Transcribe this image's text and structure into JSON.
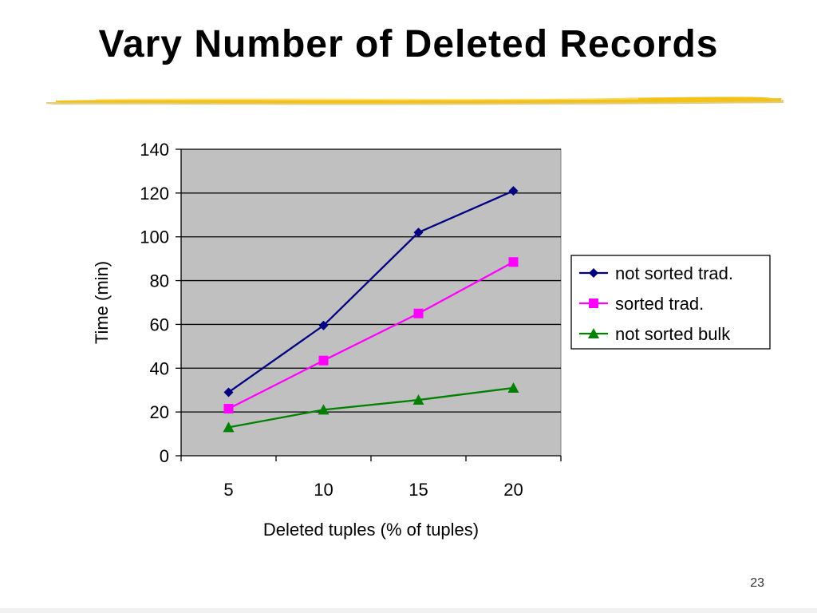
{
  "slide": {
    "title": "Vary Number of Deleted Records",
    "page_number": "23"
  },
  "colors": {
    "plot_background": "#c0c0c0",
    "gridline": "#000000",
    "underline_gold": "#f2c21b",
    "underline_shadow": "#c9a21a"
  },
  "chart_data": {
    "type": "line",
    "title": "",
    "xlabel": "Deleted tuples (% of tuples)",
    "ylabel": "Time (min)",
    "categories": [
      "5",
      "10",
      "15",
      "20"
    ],
    "ylim": [
      0,
      140
    ],
    "yticks": [
      0,
      20,
      40,
      60,
      80,
      100,
      120,
      140
    ],
    "grid": true,
    "legend_position": "right",
    "series": [
      {
        "name": "not sorted trad.",
        "values": [
          29,
          59.5,
          102,
          121
        ],
        "color": "#000080",
        "marker": "diamond"
      },
      {
        "name": "sorted trad.",
        "values": [
          21.5,
          43.5,
          65,
          88.5
        ],
        "color": "#ff00ff",
        "marker": "square"
      },
      {
        "name": "not sorted bulk",
        "values": [
          13,
          21,
          25.5,
          31
        ],
        "color": "#008000",
        "marker": "triangle"
      }
    ]
  }
}
